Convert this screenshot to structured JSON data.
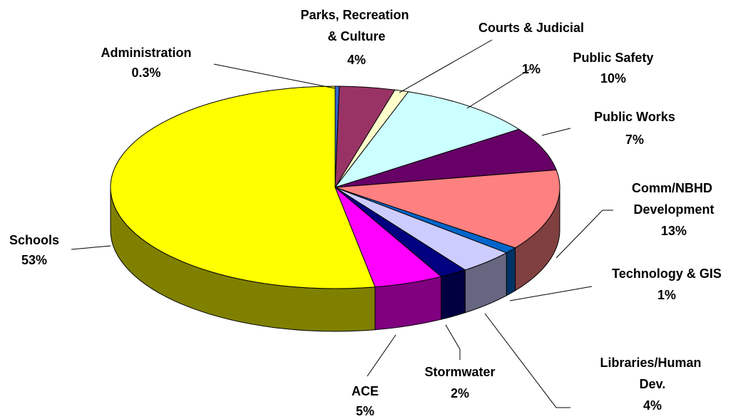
{
  "chart_data": {
    "type": "pie3d",
    "categories": [
      "Administration",
      "Parks, Recreation & Culture",
      "Courts & Judicial",
      "Public Safety",
      "Public Works",
      "Comm/NBHD Development",
      "Technology & GIS",
      "Libraries/Human Dev.",
      "Stormwater",
      "ACE",
      "Schools"
    ],
    "values": [
      0.3,
      4,
      1,
      10,
      7,
      13,
      1,
      4,
      2,
      5,
      53
    ],
    "value_labels": [
      "0.3%",
      "4%",
      "1%",
      "10%",
      "7%",
      "13%",
      "1%",
      "4%",
      "2%",
      "5%",
      "53%"
    ],
    "colors": [
      "#3366cc",
      "#993366",
      "#ffffcc",
      "#ccffff",
      "#660066",
      "#ff8080",
      "#0066cc",
      "#ccccff",
      "#000080",
      "#ff00ff",
      "#ffff00"
    ]
  }
}
